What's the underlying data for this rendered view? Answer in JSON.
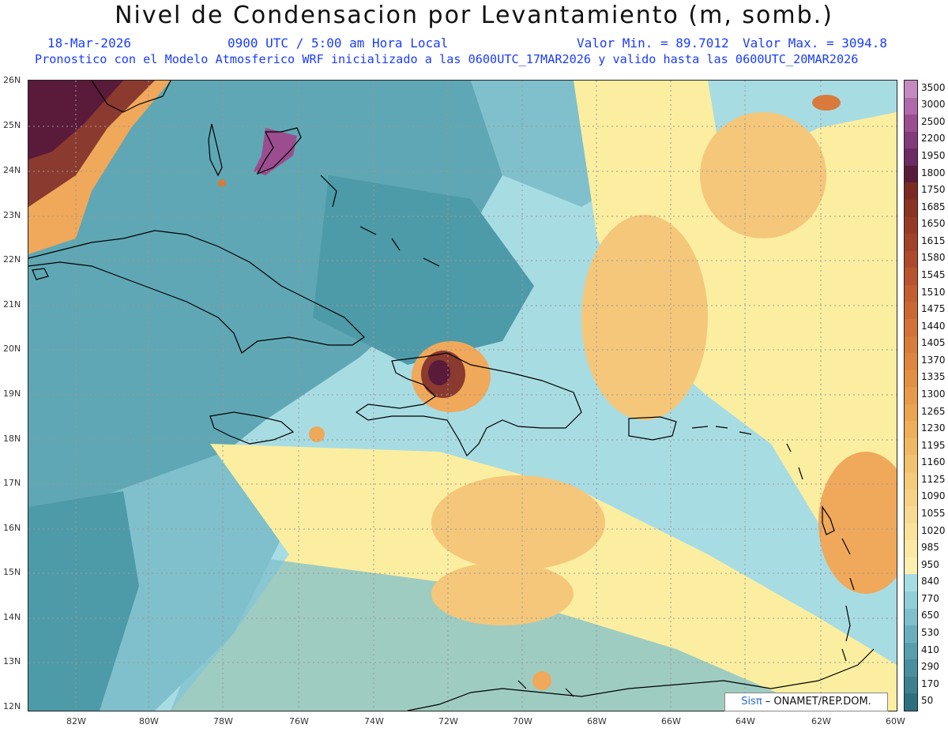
{
  "header": {
    "title": "Nivel de Condensacion por Levantamiento (m, somb.)",
    "date": "18-Mar-2026",
    "time": "0900 UTC / 5:00 am Hora Local",
    "min_value": "Valor Min. = 89.7012",
    "max_value": "Valor Max. = 3094.8",
    "forecast_note": "Pronostico con el Modelo Atmosferico WRF inicializado a las 0600UTC_17MAR2026 y valido hasta las  0600UTC_20MAR2026"
  },
  "map": {
    "lat_labels": [
      "26N",
      "25N",
      "24N",
      "23N",
      "22N",
      "21N",
      "20N",
      "19N",
      "18N",
      "17N",
      "16N",
      "15N",
      "14N",
      "13N",
      "12N"
    ],
    "lon_labels": [
      "82W",
      "80W",
      "78W",
      "76W",
      "74W",
      "72W",
      "70W",
      "68W",
      "66W",
      "64W",
      "62W",
      "60W"
    ],
    "colors": {
      "dark_teal": "#2f7f8e",
      "teal": "#4d9aa8",
      "light_teal": "#7fc0cc",
      "pale_blue": "#a8dce3",
      "pale_yellow": "#fbeea0",
      "light_orange": "#f5c77a",
      "orange": "#f0a85a",
      "dark_orange": "#d97a3a",
      "brown": "#8a3a2e",
      "maroon": "#5a1a3a",
      "purple": "#9b4d8f"
    }
  },
  "colorbar": {
    "labels": [
      "3500",
      "3000",
      "2500",
      "2200",
      "1950",
      "1800",
      "1750",
      "1685",
      "1650",
      "1615",
      "1580",
      "1545",
      "1510",
      "1475",
      "1440",
      "1405",
      "1370",
      "1335",
      "1300",
      "1265",
      "1230",
      "1195",
      "1160",
      "1125",
      "1090",
      "1055",
      "1020",
      "985",
      "950",
      "840",
      "770",
      "650",
      "530",
      "410",
      "290",
      "170",
      "50"
    ],
    "colors": [
      "#c58ac0",
      "#b06aac",
      "#9b4d8f",
      "#843a7a",
      "#6e2a62",
      "#5a1a3a",
      "#7a2a22",
      "#8a3224",
      "#963a26",
      "#a2422a",
      "#ae4a2c",
      "#b8542e",
      "#c25e30",
      "#ca6832",
      "#d27236",
      "#d87c3a",
      "#de863e",
      "#e29044",
      "#e69a4a",
      "#eaa452",
      "#eeae5a",
      "#f1b864",
      "#f3c26e",
      "#f5ca7a",
      "#f7d286",
      "#f9da92",
      "#fae29c",
      "#fbe8a4",
      "#fcefb0",
      "#a8dce3",
      "#90ced8",
      "#7fc0cc",
      "#6aafbd",
      "#589fae",
      "#4a8f9f",
      "#3d8090",
      "#2f7080"
    ]
  },
  "credit": {
    "sis": "Sisπ",
    "rest": " – ONAMET/REP.DOM."
  }
}
